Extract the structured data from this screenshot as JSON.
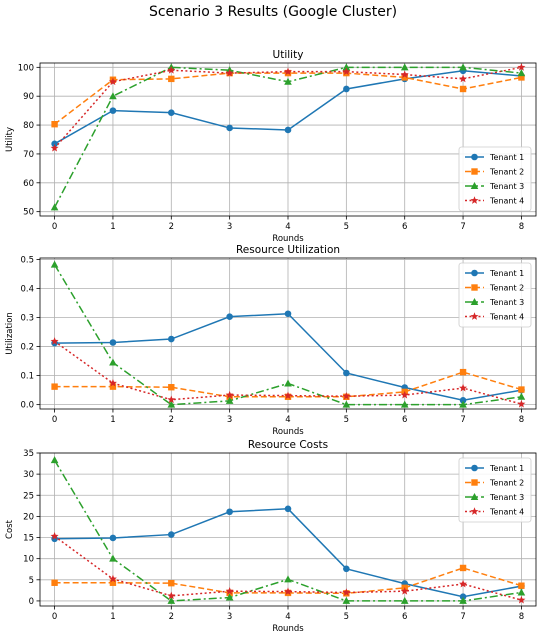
{
  "figure": {
    "suptitle": "Scenario 3 Results (Google Cluster)"
  },
  "colors": {
    "Tenant 1": "#1f77b4",
    "Tenant 2": "#ff7f0e",
    "Tenant 3": "#2ca02c",
    "Tenant 4": "#d62728"
  },
  "chart_data": [
    {
      "type": "line",
      "title": "Utility",
      "xlabel": "",
      "ylabel": "Utility",
      "x": [
        0,
        1,
        2,
        3,
        4,
        5,
        6,
        7,
        8
      ],
      "xticks": [
        "0",
        "1",
        "2",
        "3",
        "4",
        "5",
        "6",
        "7",
        "8"
      ],
      "xlim": [
        -0.25,
        8.25
      ],
      "ylim": [
        48.5,
        101.5
      ],
      "yticks": [
        50,
        60,
        70,
        80,
        90,
        100
      ],
      "ytick_labels": [
        "50",
        "60",
        "70",
        "80",
        "90",
        "100"
      ],
      "grid": true,
      "legend": "lower right",
      "series": [
        {
          "name": "Tenant 1",
          "values": [
            73.5,
            85.0,
            84.3,
            79.0,
            78.3,
            92.5,
            96.0,
            98.8,
            97.0
          ],
          "marker": "circle",
          "dash": "solid"
        },
        {
          "name": "Tenant 2",
          "values": [
            80.3,
            95.7,
            96.0,
            98.0,
            98.0,
            98.0,
            96.5,
            92.5,
            96.5
          ],
          "marker": "square",
          "dash": "dashed"
        },
        {
          "name": "Tenant 3",
          "values": [
            51.5,
            90.0,
            100.0,
            99.0,
            95.0,
            100.0,
            100.0,
            100.0,
            98.0
          ],
          "marker": "triangle",
          "dash": "dashdot"
        },
        {
          "name": "Tenant 4",
          "values": [
            72.0,
            95.0,
            99.0,
            98.0,
            98.5,
            98.5,
            97.5,
            96.0,
            100.0
          ],
          "marker": "star",
          "dash": "dotted"
        }
      ]
    },
    {
      "type": "line",
      "title": "Resource Utilization",
      "xlabel": "",
      "ylabel": "Utilization",
      "x": [
        0,
        1,
        2,
        3,
        4,
        5,
        6,
        7,
        8
      ],
      "xticks": [
        "0",
        "1",
        "2",
        "3",
        "4",
        "5",
        "6",
        "7",
        "8"
      ],
      "xlim": [
        -0.25,
        8.25
      ],
      "ylim": [
        -0.015,
        0.505
      ],
      "yticks": [
        0.0,
        0.1,
        0.2,
        0.3,
        0.4,
        0.5
      ],
      "ytick_labels": [
        "0.0",
        "0.1",
        "0.2",
        "0.3",
        "0.4",
        "0.5"
      ],
      "grid": true,
      "legend": "upper right",
      "series": [
        {
          "name": "Tenant 1",
          "values": [
            0.212,
            0.214,
            0.226,
            0.303,
            0.313,
            0.109,
            0.059,
            0.015,
            0.05
          ],
          "marker": "circle",
          "dash": "solid"
        },
        {
          "name": "Tenant 2",
          "values": [
            0.062,
            0.062,
            0.06,
            0.027,
            0.027,
            0.027,
            0.044,
            0.112,
            0.052
          ],
          "marker": "square",
          "dash": "dashed"
        },
        {
          "name": "Tenant 3",
          "values": [
            0.482,
            0.145,
            0.0,
            0.013,
            0.073,
            0.0,
            0.0,
            0.0,
            0.027
          ],
          "marker": "triangle",
          "dash": "dashdot"
        },
        {
          "name": "Tenant 4",
          "values": [
            0.218,
            0.074,
            0.017,
            0.033,
            0.031,
            0.029,
            0.033,
            0.057,
            0.002
          ],
          "marker": "star",
          "dash": "dotted"
        }
      ]
    },
    {
      "type": "line",
      "title": "Resource Costs",
      "xlabel": "Rounds",
      "ylabel": "Cost",
      "x": [
        0,
        1,
        2,
        3,
        4,
        5,
        6,
        7,
        8
      ],
      "xticks": [
        "0",
        "1",
        "2",
        "3",
        "4",
        "5",
        "6",
        "7",
        "8"
      ],
      "xlim": [
        -0.25,
        8.25
      ],
      "ylim": [
        -1.2,
        35.0
      ],
      "yticks": [
        0,
        5,
        10,
        15,
        20,
        25,
        30,
        35
      ],
      "ytick_labels": [
        "0",
        "5",
        "10",
        "15",
        "20",
        "25",
        "30",
        "35"
      ],
      "grid": true,
      "legend": "upper right",
      "series": [
        {
          "name": "Tenant 1",
          "values": [
            14.7,
            14.9,
            15.7,
            21.1,
            21.8,
            7.6,
            4.1,
            1.0,
            3.5
          ],
          "marker": "circle",
          "dash": "solid"
        },
        {
          "name": "Tenant 2",
          "values": [
            4.3,
            4.3,
            4.2,
            1.9,
            1.9,
            1.8,
            3.1,
            7.8,
            3.6
          ],
          "marker": "square",
          "dash": "dashed"
        },
        {
          "name": "Tenant 3",
          "values": [
            33.3,
            10.0,
            0.0,
            0.8,
            5.1,
            0.0,
            0.0,
            0.0,
            2.0
          ],
          "marker": "triangle",
          "dash": "dashdot"
        },
        {
          "name": "Tenant 4",
          "values": [
            15.3,
            5.2,
            1.2,
            2.3,
            2.2,
            2.0,
            2.3,
            4.0,
            0.2
          ],
          "marker": "star",
          "dash": "dotted"
        }
      ]
    }
  ]
}
